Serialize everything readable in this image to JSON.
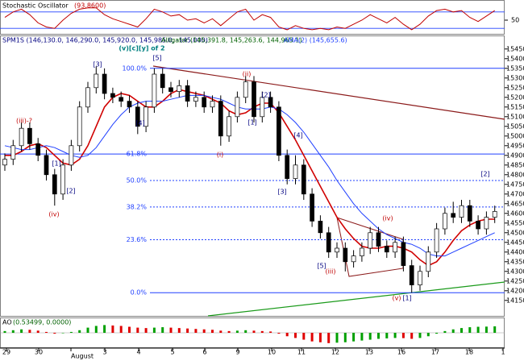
{
  "header": {
    "stoch_title": "Stochastic Oscillator",
    "stoch_value": "(93.8600)",
    "main_title": "SPM1S (146,130.0, 146,290.0, 145,920.0, 145,985.0, -145.000)",
    "alligator": "Alligator (145,391.8, 145,263.6, 144,965.1)",
    "ama": "AMA(2) (145,655.6)",
    "ao_title": "AO",
    "ao_value": "(0.53499, 0.0000)"
  },
  "chart_data": [
    {
      "type": "line",
      "color": "#c00000",
      "ylim": [
        0,
        100
      ],
      "yticks": [
        50
      ],
      "levels": [
        20,
        80
      ],
      "values": [
        60,
        80,
        90,
        70,
        40,
        25,
        20,
        50,
        75,
        90,
        95,
        95,
        70,
        55,
        45,
        35,
        25,
        55,
        90,
        80,
        65,
        70,
        50,
        55,
        40,
        55,
        30,
        55,
        80,
        90,
        50,
        70,
        60,
        25,
        15,
        30,
        20,
        15,
        20,
        15,
        25,
        20,
        35,
        50,
        70,
        55,
        40,
        60,
        35,
        15,
        35,
        65,
        85,
        90,
        80,
        85,
        60,
        45,
        65,
        85
      ]
    },
    {
      "type": "candlestick",
      "ylim": [
        14070,
        15520
      ],
      "yticks": [
        15450,
        15400,
        15350,
        15300,
        15250,
        15200,
        15150,
        15100,
        15050,
        15000,
        14950,
        14900,
        14850,
        14800,
        14750,
        14700,
        14650,
        14600,
        14550,
        14500,
        14450,
        14400,
        14350,
        14300,
        14250,
        14200,
        14150
      ],
      "x_labels": [
        "29",
        "30",
        "August",
        "3",
        "4",
        "5",
        "6",
        "9",
        "10",
        "11",
        "12",
        "13",
        "16",
        "17",
        "18",
        "1"
      ],
      "open": [
        14850,
        14880,
        14950,
        15040,
        14960,
        14900,
        14800,
        14700,
        14850,
        14950,
        15150,
        15250,
        15320,
        15220,
        15200,
        15180,
        15150,
        15050,
        15150,
        15320,
        15250,
        15230,
        15260,
        15180,
        15200,
        15150,
        15180,
        15000,
        15100,
        15200,
        15280,
        15100,
        15200,
        15150,
        14900,
        14780,
        14850,
        14700,
        14560,
        14500,
        14400,
        14420,
        14350,
        14380,
        14420,
        14500,
        14430,
        14400,
        14450,
        14330,
        14230,
        14300,
        14400,
        14520,
        14600,
        14580,
        14640,
        14560,
        14520,
        14580
      ],
      "high": [
        14910,
        14980,
        15070,
        15070,
        14990,
        14930,
        14830,
        14880,
        14980,
        15180,
        15280,
        15360,
        15350,
        15250,
        15230,
        15210,
        15180,
        15180,
        15350,
        15350,
        15280,
        15290,
        15290,
        15230,
        15230,
        15210,
        15210,
        15130,
        15230,
        15310,
        15310,
        15230,
        15230,
        15180,
        14930,
        14900,
        14880,
        14730,
        14590,
        14530,
        14450,
        14450,
        14410,
        14450,
        14530,
        14530,
        14460,
        14480,
        14480,
        14360,
        14330,
        14430,
        14550,
        14630,
        14660,
        14670,
        14670,
        14590,
        14610,
        14640
      ],
      "low": [
        14820,
        14850,
        14920,
        14930,
        14870,
        14770,
        14640,
        14670,
        14820,
        14920,
        15120,
        15220,
        15190,
        15170,
        15150,
        15120,
        15010,
        15020,
        15120,
        15220,
        15200,
        15200,
        15150,
        15150,
        15120,
        15120,
        14950,
        14970,
        15070,
        15170,
        15070,
        15070,
        15120,
        14870,
        14750,
        14750,
        14670,
        14530,
        14470,
        14370,
        14370,
        14300,
        14320,
        14350,
        14390,
        14400,
        14370,
        14370,
        14300,
        14190,
        14200,
        14270,
        14370,
        14490,
        14550,
        14550,
        14530,
        14490,
        14490,
        14550
      ],
      "close": [
        14880,
        14950,
        15040,
        14960,
        14900,
        14800,
        14700,
        14850,
        14950,
        15150,
        15250,
        15320,
        15220,
        15200,
        15180,
        15150,
        15050,
        15150,
        15320,
        15250,
        15230,
        15260,
        15180,
        15200,
        15150,
        15180,
        15000,
        15100,
        15200,
        15280,
        15100,
        15200,
        15150,
        14900,
        14780,
        14850,
        14700,
        14560,
        14500,
        14400,
        14420,
        14350,
        14380,
        14420,
        14500,
        14430,
        14400,
        14450,
        14330,
        14230,
        14300,
        14400,
        14520,
        14600,
        14580,
        14640,
        14560,
        14520,
        14580,
        14610
      ],
      "lines": [
        {
          "color": "#d00000",
          "values": [
            14900,
            14900,
            14920,
            14950,
            14960,
            14940,
            14900,
            14860,
            14850,
            14880,
            14950,
            15050,
            15150,
            15200,
            15220,
            15210,
            15180,
            15150,
            15150,
            15180,
            15220,
            15240,
            15230,
            15220,
            15210,
            15190,
            15170,
            15130,
            15110,
            15120,
            15150,
            15170,
            15170,
            15120,
            15050,
            14980,
            14900,
            14820,
            14740,
            14660,
            14580,
            14520,
            14470,
            14430,
            14420,
            14420,
            14430,
            14430,
            14420,
            14400,
            14360,
            14330,
            14350,
            14400,
            14460,
            14510,
            14540,
            14560,
            14570,
            14570
          ]
        },
        {
          "color": "#2040ff",
          "values": [
            14950,
            14940,
            14930,
            14930,
            14940,
            14950,
            14940,
            14920,
            14900,
            14890,
            14900,
            14940,
            15000,
            15060,
            15110,
            15150,
            15170,
            15180,
            15180,
            15180,
            15190,
            15200,
            15210,
            15210,
            15210,
            15200,
            15190,
            15170,
            15150,
            15140,
            15140,
            15140,
            15150,
            15140,
            15110,
            15070,
            15020,
            14960,
            14900,
            14840,
            14770,
            14710,
            14650,
            14600,
            14560,
            14520,
            14490,
            14470,
            14450,
            14440,
            14420,
            14390,
            14380,
            14380,
            14400,
            14420,
            14440,
            14460,
            14480,
            14500
          ]
        }
      ],
      "fib_levels": [
        {
          "label": "100.0%",
          "price": 15350
        },
        {
          "label": "61.8%",
          "price": 14907
        },
        {
          "label": "50.0%",
          "price": 14770
        },
        {
          "label": "38.2%",
          "price": 14633
        },
        {
          "label": "23.6%",
          "price": 14464
        },
        {
          "label": "0.0%",
          "price": 14190
        }
      ],
      "annotations": [
        {
          "text": "(v)[c][y] of 2",
          "color": "#008080"
        },
        {
          "text": "(iii)-?",
          "color": "#c00000"
        },
        {
          "text": "(iv)",
          "color": "#c00000"
        },
        {
          "text": "[1]",
          "color": "#000080"
        },
        {
          "text": "[2]",
          "color": "#000080"
        },
        {
          "text": "[3]",
          "color": "#000080"
        },
        {
          "text": "[4]",
          "color": "#000080"
        },
        {
          "text": "[5]",
          "color": "#000080"
        },
        {
          "text": "(i)",
          "color": "#c00000"
        },
        {
          "text": "(ii)",
          "color": "#c00000"
        },
        {
          "text": "[1]",
          "color": "#000080"
        },
        {
          "text": "[2]",
          "color": "#000080"
        },
        {
          "text": "[3]",
          "color": "#000080"
        },
        {
          "text": "[4]",
          "color": "#000080"
        },
        {
          "text": "[5]",
          "color": "#000080"
        },
        {
          "text": "(iii)",
          "color": "#c00000"
        },
        {
          "text": "(iv)",
          "color": "#c00000"
        },
        {
          "text": "(v)",
          "color": "#c00000"
        },
        {
          "text": "[1]",
          "color": "#000080"
        },
        {
          "text": "[2]",
          "color": "#000080"
        }
      ]
    },
    {
      "type": "bar",
      "ylim": [
        -150,
        150
      ],
      "colors": [
        "#00a000",
        "#e00000"
      ],
      "values": [
        20,
        30,
        40,
        35,
        25,
        10,
        -10,
        -5,
        10,
        30,
        60,
        80,
        90,
        85,
        80,
        70,
        60,
        55,
        60,
        65,
        60,
        55,
        50,
        45,
        40,
        35,
        25,
        20,
        25,
        30,
        25,
        20,
        15,
        -10,
        -40,
        -60,
        -80,
        -100,
        -110,
        -120,
        -115,
        -110,
        -100,
        -90,
        -80,
        -70,
        -65,
        -60,
        -62,
        -70,
        -60,
        -40,
        -10,
        20,
        40,
        55,
        65,
        70,
        72,
        75
      ]
    }
  ]
}
